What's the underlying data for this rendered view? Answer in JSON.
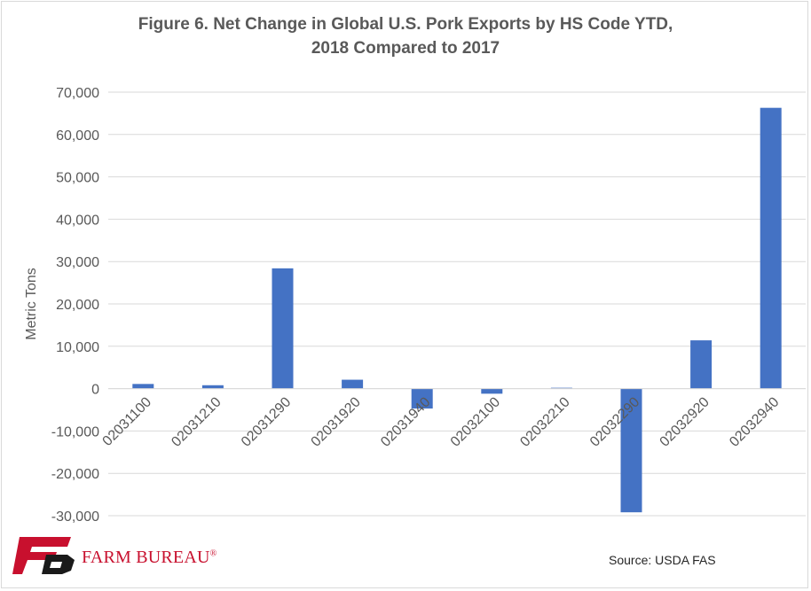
{
  "chart_data": {
    "type": "bar",
    "title_lines": [
      "Figure 6. Net Change in Global U.S. Pork Exports by HS Code YTD,",
      "2018 Compared to 2017"
    ],
    "ylabel": "Metric Tons",
    "xlabel": "",
    "categories": [
      "02031100",
      "02031210",
      "02031290",
      "02031920",
      "02031940",
      "02032100",
      "02032210",
      "02032290",
      "02032920",
      "02032940"
    ],
    "values": [
      1100,
      800,
      28400,
      2100,
      -4700,
      -1200,
      200,
      -29200,
      11400,
      66300
    ],
    "ylim": [
      -30000,
      70000
    ],
    "yticks": [
      -30000,
      -20000,
      -10000,
      0,
      10000,
      20000,
      30000,
      40000,
      50000,
      60000,
      70000
    ],
    "ytick_labels": [
      "-30,000",
      "-20,000",
      "-10,000",
      "0",
      "10,000",
      "20,000",
      "30,000",
      "40,000",
      "50,000",
      "60,000",
      "70,000"
    ],
    "grid": true,
    "bar_color": "#4472c4"
  },
  "footer": {
    "logo_text": "FARM BUREAU",
    "logo_mark": "®",
    "source": "Source: USDA FAS"
  }
}
